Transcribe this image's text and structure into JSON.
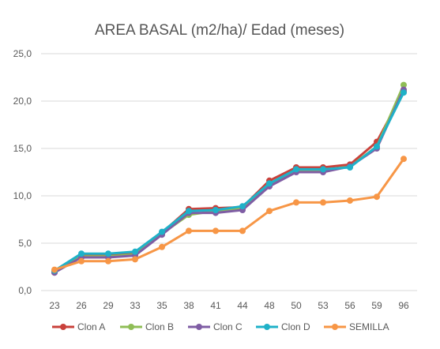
{
  "chart_data": {
    "type": "line",
    "title": "AREA BASAL (m2/ha)/ Edad (meses)",
    "xlabel": "",
    "ylabel": "",
    "categories": [
      "23",
      "26",
      "29",
      "33",
      "35",
      "38",
      "41",
      "44",
      "48",
      "50",
      "53",
      "56",
      "59",
      "96"
    ],
    "y_tick_labels": [
      "0,0",
      "5,0",
      "10,0",
      "15,0",
      "20,0",
      "25,0"
    ],
    "ylim": [
      0,
      25
    ],
    "grid": true,
    "legend_position": "bottom",
    "series": [
      {
        "name": "Clon A",
        "color": "#c9413b",
        "values": [
          1.9,
          3.7,
          3.7,
          3.9,
          6.1,
          8.6,
          8.7,
          8.8,
          11.6,
          13.0,
          13.0,
          13.3,
          15.7,
          21.0
        ]
      },
      {
        "name": "Clon B",
        "color": "#8fbd56",
        "values": [
          2.0,
          3.6,
          3.6,
          3.8,
          6.0,
          8.0,
          8.4,
          8.7,
          11.2,
          12.7,
          12.7,
          13.1,
          15.2,
          21.7
        ]
      },
      {
        "name": "Clon C",
        "color": "#7f5da4",
        "values": [
          1.9,
          3.5,
          3.5,
          3.7,
          5.9,
          8.2,
          8.2,
          8.5,
          11.0,
          12.5,
          12.5,
          13.1,
          15.0,
          21.2
        ]
      },
      {
        "name": "Clon D",
        "color": "#1fb1c8",
        "values": [
          2.1,
          3.9,
          3.9,
          4.1,
          6.2,
          8.4,
          8.5,
          8.9,
          11.3,
          12.8,
          12.8,
          13.0,
          15.2,
          20.9
        ]
      },
      {
        "name": "SEMILLA",
        "color": "#f79646",
        "values": [
          2.2,
          3.1,
          3.1,
          3.3,
          4.6,
          6.3,
          6.3,
          6.3,
          8.4,
          9.3,
          9.3,
          9.5,
          9.9,
          13.9
        ]
      }
    ]
  }
}
